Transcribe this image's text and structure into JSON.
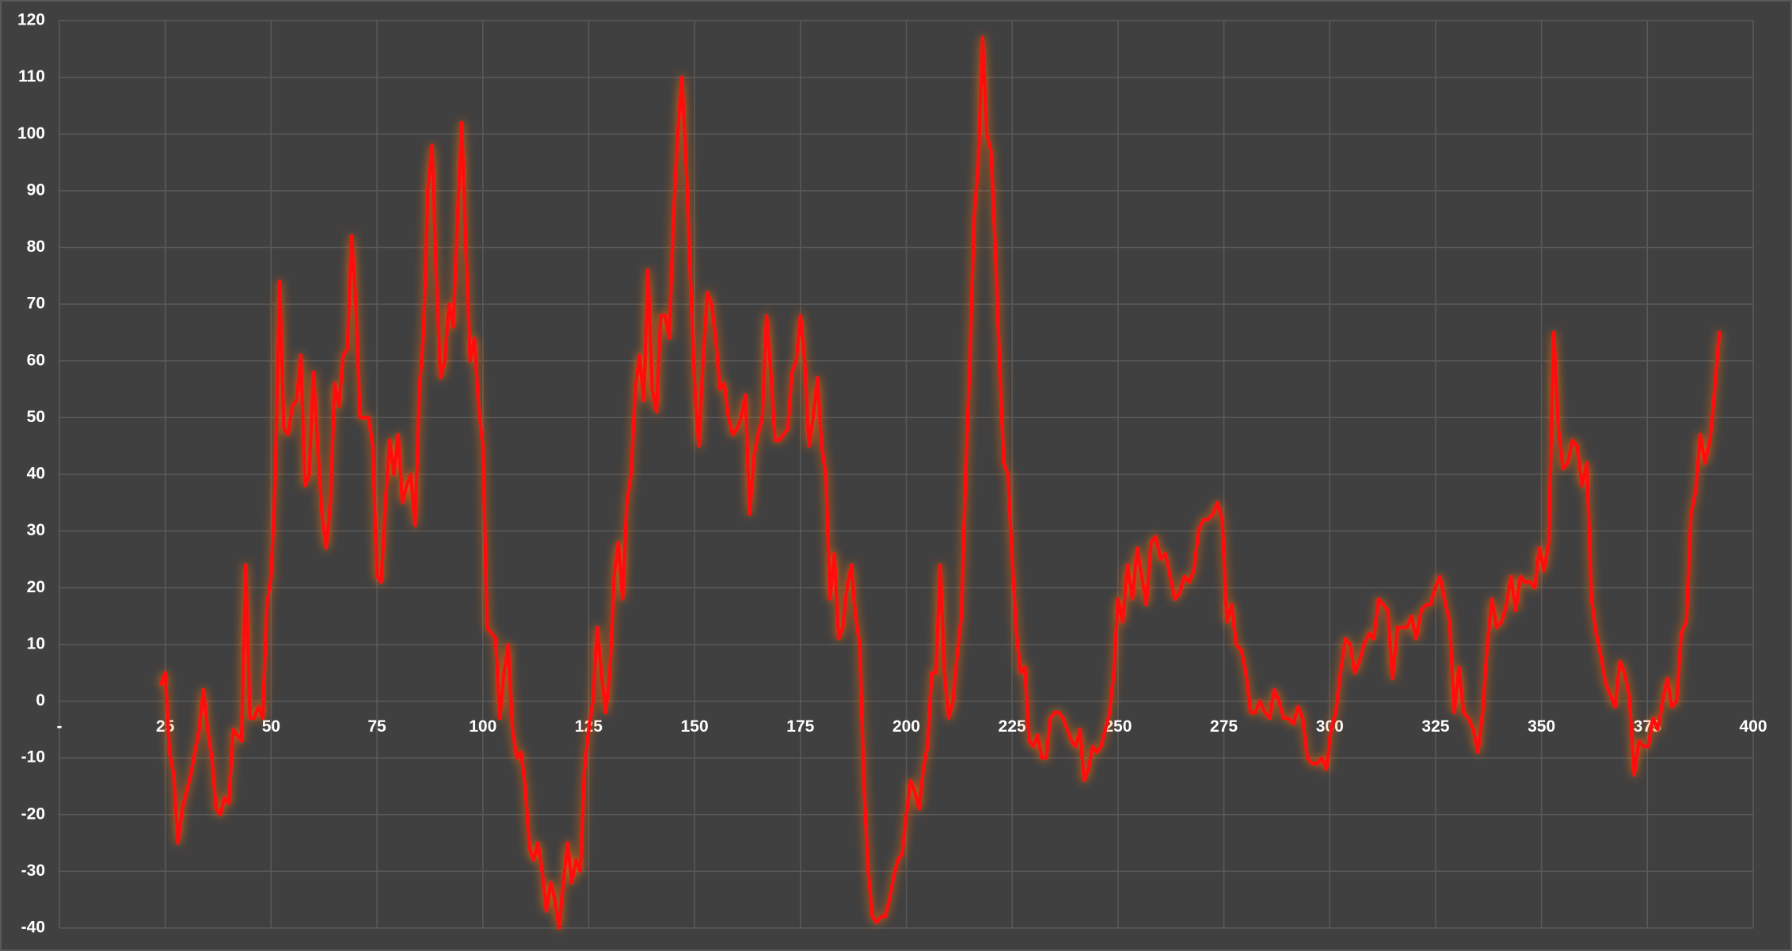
{
  "chart_data": {
    "type": "line",
    "x": [
      24,
      25,
      26,
      27,
      28,
      29,
      30,
      31,
      32,
      33,
      34,
      35,
      36,
      37,
      38,
      39,
      40,
      41,
      42,
      43,
      44,
      45,
      46,
      47,
      48,
      49,
      50,
      51,
      52,
      53,
      54,
      55,
      56,
      57,
      58,
      59,
      60,
      61,
      62,
      63,
      64,
      65,
      66,
      67,
      68,
      69,
      70,
      71,
      72,
      73,
      74,
      75,
      76,
      77,
      78,
      79,
      80,
      81,
      82,
      83,
      84,
      85,
      86,
      87,
      88,
      89,
      90,
      91,
      92,
      93,
      94,
      95,
      96,
      97,
      98,
      99,
      100,
      101,
      102,
      103,
      104,
      105,
      106,
      107,
      108,
      109,
      110,
      111,
      112,
      113,
      114,
      115,
      116,
      117,
      118,
      119,
      120,
      121,
      122,
      123,
      124,
      125,
      126,
      127,
      128,
      129,
      130,
      131,
      132,
      133,
      134,
      135,
      136,
      137,
      138,
      139,
      140,
      141,
      142,
      143,
      144,
      145,
      146,
      147,
      148,
      149,
      150,
      151,
      152,
      153,
      154,
      155,
      156,
      157,
      158,
      159,
      160,
      161,
      162,
      163,
      164,
      165,
      166,
      167,
      168,
      169,
      170,
      171,
      172,
      173,
      174,
      175,
      176,
      177,
      178,
      179,
      180,
      181,
      182,
      183,
      184,
      185,
      186,
      187,
      188,
      189,
      190,
      191,
      192,
      193,
      194,
      195,
      196,
      197,
      198,
      199,
      200,
      201,
      202,
      203,
      204,
      205,
      206,
      207,
      208,
      209,
      210,
      211,
      212,
      213,
      214,
      215,
      216,
      217,
      218,
      219,
      220,
      221,
      222,
      223,
      224,
      225,
      226,
      227,
      228,
      229,
      230,
      231,
      232,
      233,
      234,
      235,
      236,
      237,
      238,
      239,
      240,
      241,
      242,
      243,
      244,
      245,
      246,
      247,
      248,
      249,
      250.0,
      251.1,
      252.2,
      253.4,
      254.5,
      255.6,
      256.7,
      257.8,
      258.9,
      260.1,
      261.2,
      262.3,
      263.4,
      264.5,
      265.7,
      266.8,
      267.9,
      269.0,
      270.1,
      271.2,
      272.4,
      273.5,
      274.6,
      275.7,
      276.8,
      277.9,
      279.1,
      280.2,
      281.3,
      282.4,
      283.5,
      284.7,
      285.8,
      286.9,
      288.0,
      289.1,
      290.2,
      291.4,
      292.5,
      293.6,
      294.7,
      295.8,
      297.0,
      298.1,
      299.2,
      300.3,
      301.4,
      302.5,
      303.7,
      304.8,
      305.9,
      307.0,
      308.1,
      309.3,
      310.4,
      311.5,
      312.6,
      313.7,
      314.8,
      316.0,
      317.1,
      318.2,
      319.3,
      320.4,
      321.6,
      322.7,
      323.8,
      324.9,
      326.0,
      327.1,
      328.3,
      329.4,
      330.5,
      331.6,
      332.7,
      333.9,
      335.0,
      336.1,
      337.2,
      338.3,
      339.4,
      340.6,
      341.7,
      342.8,
      343.9,
      345.0,
      346.1,
      347.3,
      348.4,
      349.5,
      350.6,
      351.7,
      352.9,
      354.0,
      355.1,
      356.2,
      357.3,
      358.4,
      359.6,
      360.7,
      361.8,
      362.9,
      364.0,
      365.2,
      366.3,
      367.4,
      368.5,
      369.6,
      370.7,
      371.9,
      373.0,
      374.1,
      375.2,
      376.3,
      377.5,
      378.6,
      379.7,
      380.8,
      381.9,
      383.0,
      384.2,
      385.3,
      386.4,
      387.5,
      388.6,
      389.8,
      390.9,
      392.0
    ],
    "values": [
      3,
      5,
      -9,
      -13,
      -25,
      -19,
      -16,
      -13,
      -9,
      -5,
      2,
      -5,
      -10,
      -19,
      -20,
      -17,
      -18,
      -5,
      -6,
      -7,
      24,
      -3,
      -3,
      -1,
      -3,
      17,
      22,
      40,
      74,
      48,
      47,
      52,
      53,
      61,
      38,
      40,
      58,
      45,
      33,
      27,
      35,
      56,
      52,
      61,
      62,
      82,
      70,
      50,
      50,
      50,
      45,
      22,
      21,
      35,
      46,
      40,
      47,
      35,
      38,
      40,
      31,
      55,
      65,
      90,
      98,
      75,
      57,
      60,
      70,
      66,
      85,
      102,
      80,
      60,
      64,
      52,
      45,
      13,
      12,
      11,
      -3,
      5,
      10,
      -5,
      -10,
      -9,
      -15,
      -26,
      -28,
      -25,
      -30,
      -37,
      -32,
      -35,
      -40,
      -32,
      -25,
      -32,
      -28,
      -30,
      -12,
      -5,
      0,
      13,
      5,
      -2,
      5,
      22,
      28,
      18,
      35,
      40,
      55,
      61,
      53,
      76,
      55,
      51,
      68,
      68,
      64,
      85,
      100,
      110,
      95,
      75,
      56,
      45,
      60,
      72,
      70,
      64,
      55,
      56,
      50,
      47,
      48,
      50,
      54,
      33,
      43,
      47,
      50,
      68,
      58,
      46,
      46,
      47,
      48,
      58,
      60,
      68,
      60,
      45,
      50,
      57,
      45,
      40,
      18,
      26,
      11,
      13,
      20,
      24,
      15,
      10,
      -15,
      -30,
      -38,
      -39,
      -38,
      -38,
      -35,
      -31,
      -28,
      -27,
      -20,
      -14,
      -16,
      -19,
      -12,
      -8,
      5,
      5,
      24,
      5,
      -3,
      0,
      8,
      15,
      40,
      60,
      85,
      95,
      117,
      100,
      97,
      80,
      60,
      42,
      40,
      25,
      12,
      5,
      6,
      -7,
      -8,
      -6,
      -10,
      -10,
      -3,
      -2,
      -2,
      -3,
      -5,
      -7,
      -8,
      -5,
      -14,
      -12,
      -8,
      -9,
      -8,
      -5,
      -2,
      5,
      18,
      14,
      24,
      18,
      27,
      22,
      17,
      28,
      29,
      25,
      26,
      22,
      18,
      19,
      22,
      21,
      23,
      30,
      32,
      32,
      33,
      35,
      32,
      14,
      17,
      10,
      9,
      5,
      -2,
      -2,
      0,
      -2,
      -3,
      2,
      0,
      -3,
      -3,
      -4,
      -1,
      -3,
      -10,
      -11,
      -11,
      -10,
      -12,
      -5,
      -2,
      5,
      11,
      10,
      5,
      7,
      10,
      12,
      11,
      18,
      17,
      16,
      4,
      13,
      13,
      13,
      15,
      11,
      16,
      17,
      17,
      20,
      22,
      18,
      14,
      -2,
      6,
      -2,
      -3,
      -5,
      -9,
      -2,
      10,
      18,
      13,
      14,
      17,
      22,
      16,
      22,
      21,
      21,
      20,
      27,
      23,
      28,
      65,
      48,
      41,
      42,
      46,
      45,
      38,
      42,
      18,
      12,
      8,
      3,
      1,
      -1,
      7,
      5,
      1,
      -13,
      -7,
      -8,
      -8,
      -3,
      -5,
      0,
      4,
      -1,
      0,
      12,
      14,
      33,
      37,
      47,
      42,
      46,
      55,
      65
    ],
    "color": "#ff1010",
    "xlim": [
      0,
      400
    ],
    "xticks": [
      {
        "value": 0,
        "label": "-"
      },
      25,
      50,
      75,
      100,
      125,
      150,
      175,
      200,
      225,
      250,
      275,
      300,
      325,
      350,
      375,
      400
    ],
    "ylim": [
      -40,
      120
    ],
    "yticks": [
      -40,
      -30,
      -20,
      -10,
      0,
      10,
      20,
      30,
      40,
      50,
      60,
      70,
      80,
      90,
      100,
      110,
      120
    ],
    "grid": true
  }
}
